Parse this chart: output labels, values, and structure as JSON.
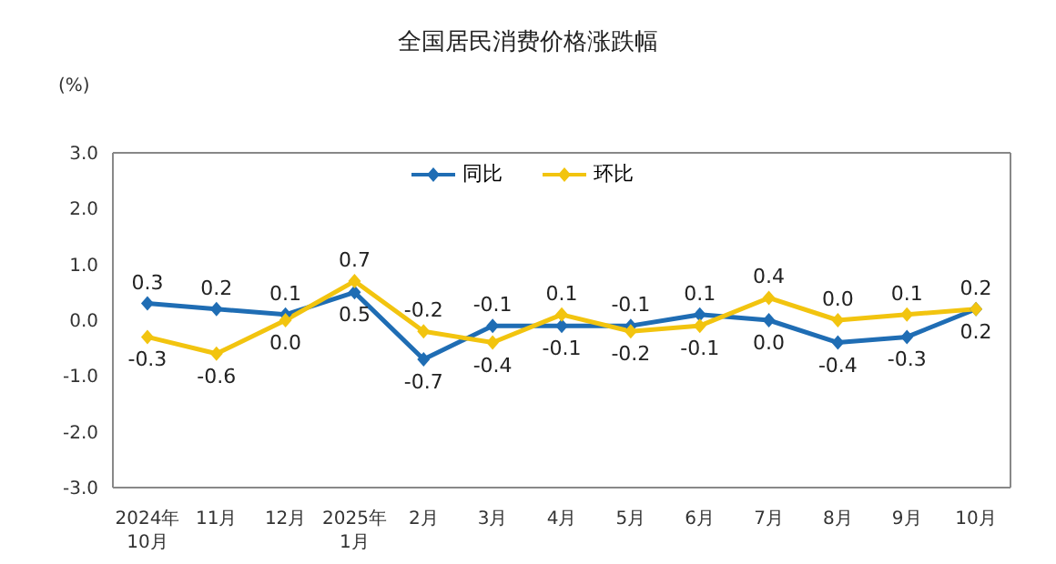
{
  "chart_data": {
    "type": "line",
    "title": "全国居民消费价格涨跌幅",
    "ylabel": "(%)",
    "categories": [
      "2024年\n10月",
      "11月",
      "12月",
      "2025年\n1月",
      "2月",
      "3月",
      "4月",
      "5月",
      "6月",
      "7月",
      "8月",
      "9月",
      "10月"
    ],
    "series": [
      {
        "name": "同比",
        "color": "#1f6db4",
        "values": [
          0.3,
          0.2,
          0.1,
          0.5,
          -0.7,
          -0.1,
          -0.1,
          -0.1,
          0.1,
          0.0,
          -0.4,
          -0.3,
          0.2
        ],
        "value_labels": [
          "0.3",
          "0.2",
          "0.1",
          "0.5",
          "-0.7",
          "-0.1",
          "-0.1",
          "-0.1",
          "0.1",
          "0.0",
          "-0.4",
          "-0.3",
          "0.2"
        ]
      },
      {
        "name": "环比",
        "color": "#f2c40f",
        "values": [
          -0.3,
          -0.6,
          0.0,
          0.7,
          -0.2,
          -0.4,
          0.1,
          -0.2,
          -0.1,
          0.4,
          0.0,
          0.1,
          0.2
        ],
        "value_labels": [
          "-0.3",
          "-0.6",
          "0.0",
          "0.7",
          "-0.2",
          "-0.4",
          "0.1",
          "-0.2",
          "-0.1",
          "0.4",
          "0.0",
          "0.1",
          "0.2"
        ]
      }
    ],
    "ylim": [
      -3,
      3
    ],
    "yticks": [
      {
        "value": 3,
        "label": "3.0"
      },
      {
        "value": 2,
        "label": "2.0"
      },
      {
        "value": 1,
        "label": "1.0"
      },
      {
        "value": 0,
        "label": "0.0"
      },
      {
        "value": -1,
        "label": "-1.0"
      },
      {
        "value": -2,
        "label": "-2.0"
      },
      {
        "value": -3,
        "label": "-3.0"
      }
    ],
    "grid": false,
    "legend": "top",
    "marker": "diamond",
    "line_style": "solid"
  }
}
